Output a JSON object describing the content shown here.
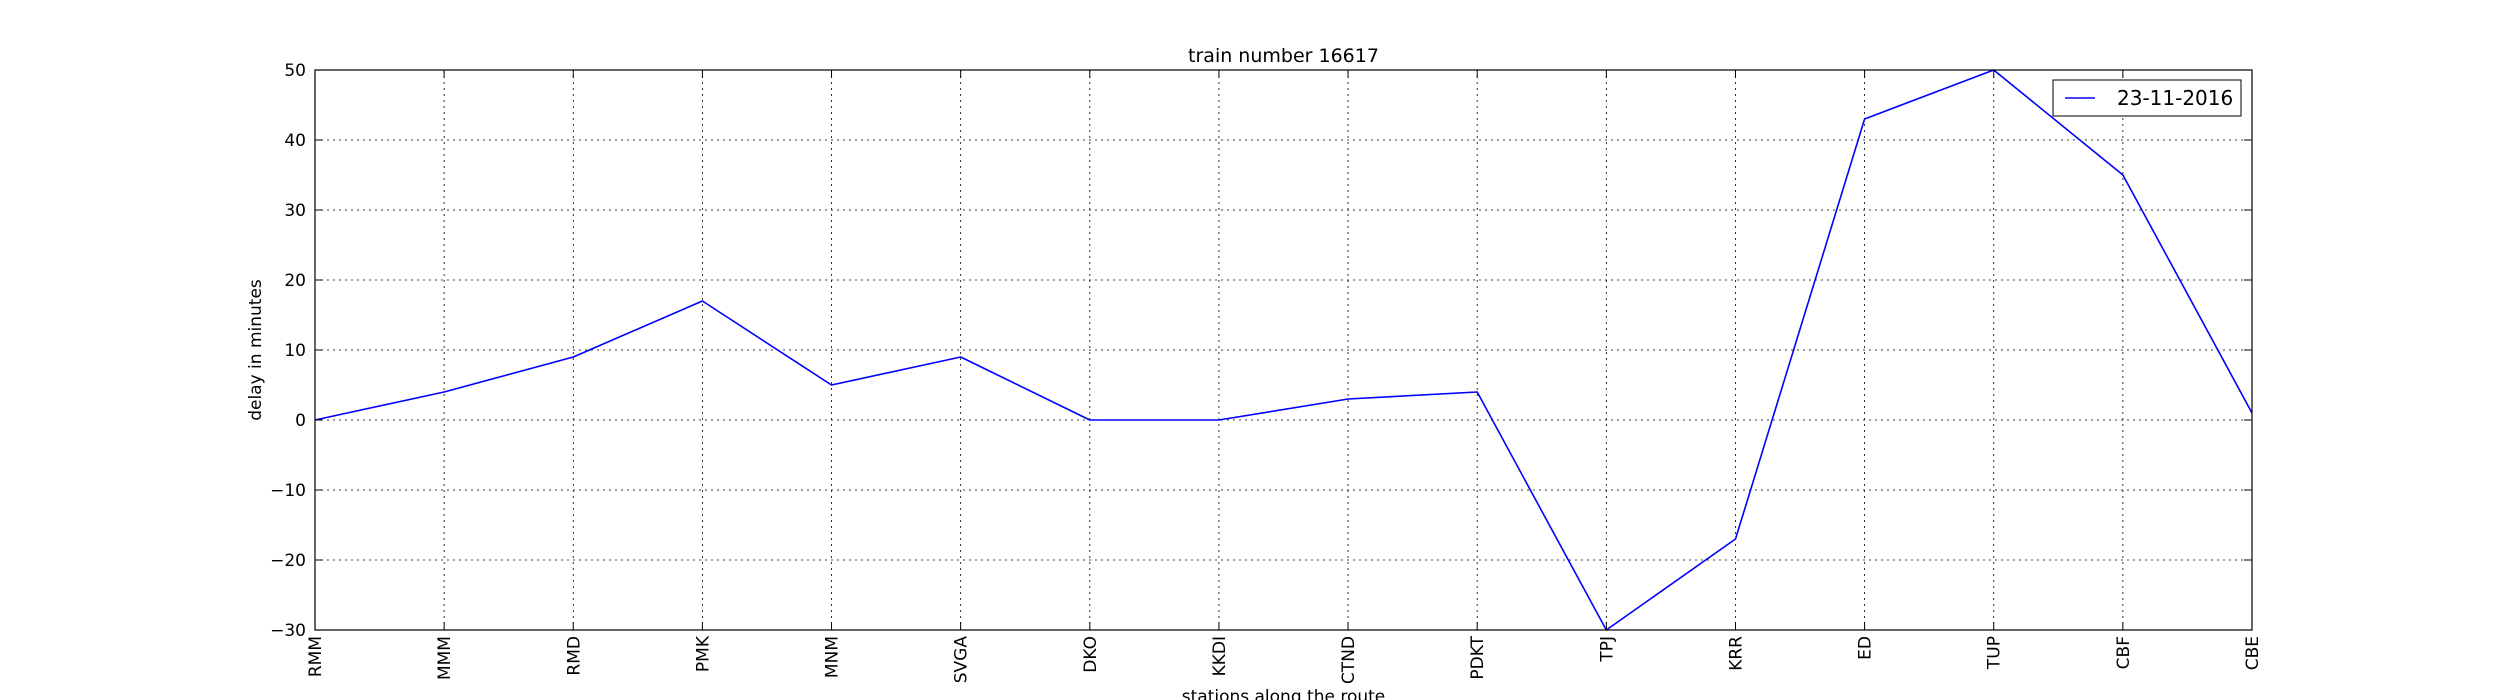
{
  "chart_data": {
    "type": "line",
    "title": "train number 16617",
    "xlabel": "stations along the route",
    "ylabel": "delay in minutes",
    "categories": [
      "RMM",
      "MMM",
      "RMD",
      "PMK",
      "MNM",
      "SVGA",
      "DKO",
      "KKDI",
      "CTND",
      "PDKT",
      "TPJ",
      "KRR",
      "ED",
      "TUP",
      "CBF",
      "CBE"
    ],
    "series": [
      {
        "name": "23-11-2016",
        "color": "#0000ff",
        "values": [
          0,
          4,
          9,
          17,
          5,
          9,
          0,
          0,
          3,
          4,
          -30,
          -17,
          43,
          50,
          35,
          1
        ]
      }
    ],
    "ylim": [
      -30,
      50
    ],
    "yticks": [
      -30,
      -20,
      -10,
      0,
      10,
      20,
      30,
      40,
      50
    ],
    "grid": true,
    "legend_position": "top-right"
  }
}
